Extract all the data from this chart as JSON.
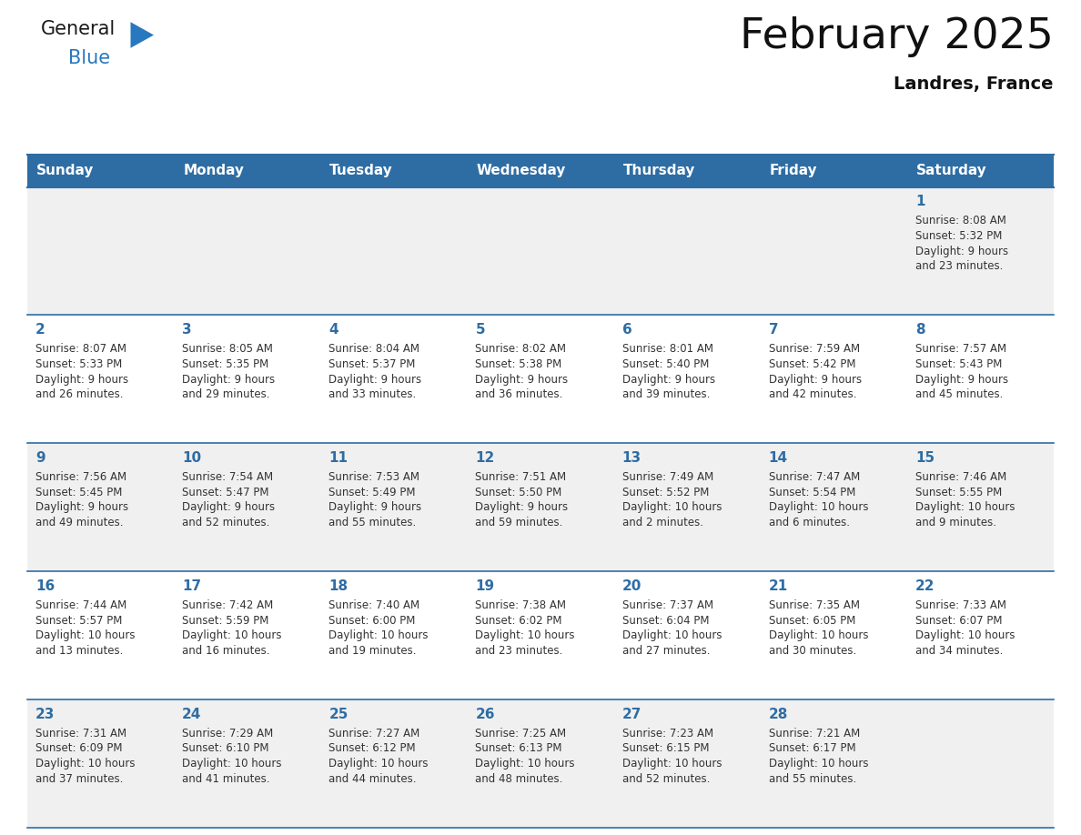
{
  "title": "February 2025",
  "subtitle": "Landres, France",
  "days_of_week": [
    "Sunday",
    "Monday",
    "Tuesday",
    "Wednesday",
    "Thursday",
    "Friday",
    "Saturday"
  ],
  "header_bg_color": "#2E6DA4",
  "header_text_color": "#FFFFFF",
  "cell_bg_even": "#F0F0F0",
  "cell_bg_odd": "#FFFFFF",
  "cell_border_color": "#2E6DA4",
  "day_number_color": "#2E6DA4",
  "info_text_color": "#333333",
  "background_color": "#FFFFFF",
  "calendar_data": [
    {
      "day": 1,
      "col": 6,
      "row": 0,
      "sunrise": "8:08 AM",
      "sunset": "5:32 PM",
      "daylight": "9 hours and 23 minutes."
    },
    {
      "day": 2,
      "col": 0,
      "row": 1,
      "sunrise": "8:07 AM",
      "sunset": "5:33 PM",
      "daylight": "9 hours and 26 minutes."
    },
    {
      "day": 3,
      "col": 1,
      "row": 1,
      "sunrise": "8:05 AM",
      "sunset": "5:35 PM",
      "daylight": "9 hours and 29 minutes."
    },
    {
      "day": 4,
      "col": 2,
      "row": 1,
      "sunrise": "8:04 AM",
      "sunset": "5:37 PM",
      "daylight": "9 hours and 33 minutes."
    },
    {
      "day": 5,
      "col": 3,
      "row": 1,
      "sunrise": "8:02 AM",
      "sunset": "5:38 PM",
      "daylight": "9 hours and 36 minutes."
    },
    {
      "day": 6,
      "col": 4,
      "row": 1,
      "sunrise": "8:01 AM",
      "sunset": "5:40 PM",
      "daylight": "9 hours and 39 minutes."
    },
    {
      "day": 7,
      "col": 5,
      "row": 1,
      "sunrise": "7:59 AM",
      "sunset": "5:42 PM",
      "daylight": "9 hours and 42 minutes."
    },
    {
      "day": 8,
      "col": 6,
      "row": 1,
      "sunrise": "7:57 AM",
      "sunset": "5:43 PM",
      "daylight": "9 hours and 45 minutes."
    },
    {
      "day": 9,
      "col": 0,
      "row": 2,
      "sunrise": "7:56 AM",
      "sunset": "5:45 PM",
      "daylight": "9 hours and 49 minutes."
    },
    {
      "day": 10,
      "col": 1,
      "row": 2,
      "sunrise": "7:54 AM",
      "sunset": "5:47 PM",
      "daylight": "9 hours and 52 minutes."
    },
    {
      "day": 11,
      "col": 2,
      "row": 2,
      "sunrise": "7:53 AM",
      "sunset": "5:49 PM",
      "daylight": "9 hours and 55 minutes."
    },
    {
      "day": 12,
      "col": 3,
      "row": 2,
      "sunrise": "7:51 AM",
      "sunset": "5:50 PM",
      "daylight": "9 hours and 59 minutes."
    },
    {
      "day": 13,
      "col": 4,
      "row": 2,
      "sunrise": "7:49 AM",
      "sunset": "5:52 PM",
      "daylight": "10 hours and 2 minutes."
    },
    {
      "day": 14,
      "col": 5,
      "row": 2,
      "sunrise": "7:47 AM",
      "sunset": "5:54 PM",
      "daylight": "10 hours and 6 minutes."
    },
    {
      "day": 15,
      "col": 6,
      "row": 2,
      "sunrise": "7:46 AM",
      "sunset": "5:55 PM",
      "daylight": "10 hours and 9 minutes."
    },
    {
      "day": 16,
      "col": 0,
      "row": 3,
      "sunrise": "7:44 AM",
      "sunset": "5:57 PM",
      "daylight": "10 hours and 13 minutes."
    },
    {
      "day": 17,
      "col": 1,
      "row": 3,
      "sunrise": "7:42 AM",
      "sunset": "5:59 PM",
      "daylight": "10 hours and 16 minutes."
    },
    {
      "day": 18,
      "col": 2,
      "row": 3,
      "sunrise": "7:40 AM",
      "sunset": "6:00 PM",
      "daylight": "10 hours and 19 minutes."
    },
    {
      "day": 19,
      "col": 3,
      "row": 3,
      "sunrise": "7:38 AM",
      "sunset": "6:02 PM",
      "daylight": "10 hours and 23 minutes."
    },
    {
      "day": 20,
      "col": 4,
      "row": 3,
      "sunrise": "7:37 AM",
      "sunset": "6:04 PM",
      "daylight": "10 hours and 27 minutes."
    },
    {
      "day": 21,
      "col": 5,
      "row": 3,
      "sunrise": "7:35 AM",
      "sunset": "6:05 PM",
      "daylight": "10 hours and 30 minutes."
    },
    {
      "day": 22,
      "col": 6,
      "row": 3,
      "sunrise": "7:33 AM",
      "sunset": "6:07 PM",
      "daylight": "10 hours and 34 minutes."
    },
    {
      "day": 23,
      "col": 0,
      "row": 4,
      "sunrise": "7:31 AM",
      "sunset": "6:09 PM",
      "daylight": "10 hours and 37 minutes."
    },
    {
      "day": 24,
      "col": 1,
      "row": 4,
      "sunrise": "7:29 AM",
      "sunset": "6:10 PM",
      "daylight": "10 hours and 41 minutes."
    },
    {
      "day": 25,
      "col": 2,
      "row": 4,
      "sunrise": "7:27 AM",
      "sunset": "6:12 PM",
      "daylight": "10 hours and 44 minutes."
    },
    {
      "day": 26,
      "col": 3,
      "row": 4,
      "sunrise": "7:25 AM",
      "sunset": "6:13 PM",
      "daylight": "10 hours and 48 minutes."
    },
    {
      "day": 27,
      "col": 4,
      "row": 4,
      "sunrise": "7:23 AM",
      "sunset": "6:15 PM",
      "daylight": "10 hours and 52 minutes."
    },
    {
      "day": 28,
      "col": 5,
      "row": 4,
      "sunrise": "7:21 AM",
      "sunset": "6:17 PM",
      "daylight": "10 hours and 55 minutes."
    }
  ],
  "num_rows": 5,
  "num_cols": 7,
  "logo_general_color": "#1a1a1a",
  "logo_blue_color": "#2878C0",
  "logo_triangle_color": "#2878C0",
  "title_fontsize": 34,
  "subtitle_fontsize": 14,
  "header_fontsize": 11,
  "day_number_fontsize": 11,
  "info_fontsize": 8.5
}
